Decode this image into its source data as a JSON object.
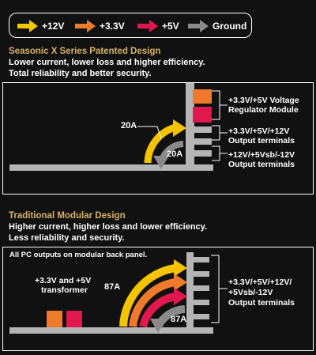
{
  "legend": {
    "items": [
      {
        "label": "+12V",
        "color": "#f5c400"
      },
      {
        "label": "+3.3V",
        "color": "#f07a2c"
      },
      {
        "label": "+5V",
        "color": "#e0184e"
      },
      {
        "label": "Ground",
        "color": "#8a8a8a"
      }
    ]
  },
  "x_series": {
    "title": "Seasonic X Series Patented Design",
    "description": [
      "Lower current, lower loss and higher efficiency.",
      "Total reliability and better security."
    ],
    "module_label": [
      "+3.3V/+5V Voltage",
      "Regulator Module"
    ],
    "terminals_top": [
      "+3.3V/+5V/+12V",
      "Output terminals"
    ],
    "terminals_bottom": [
      "+12V/+5Vsb/-12V",
      "Output terminals"
    ],
    "current_in": "20A",
    "current_out": "20A"
  },
  "modular": {
    "title": "Traditional Modular Design",
    "description": [
      "Higher current, higher loss and lower efficiency.",
      "Less reliability and security."
    ],
    "panel_note": "All PC outputs on modular back panel.",
    "transformer_label": [
      "+3.3V and +5V",
      "transformer"
    ],
    "terminals": [
      "+3.3V/+5V/+12V/",
      "+5Vsb/-12V",
      "Output terminals"
    ],
    "current_in": "87A",
    "current_out": "87A"
  },
  "colors": {
    "yellow": "#f5c400",
    "orange": "#f07a2c",
    "red": "#e0184e",
    "gray": "#8a8a8a",
    "gold_heading": "#d8b36a"
  }
}
